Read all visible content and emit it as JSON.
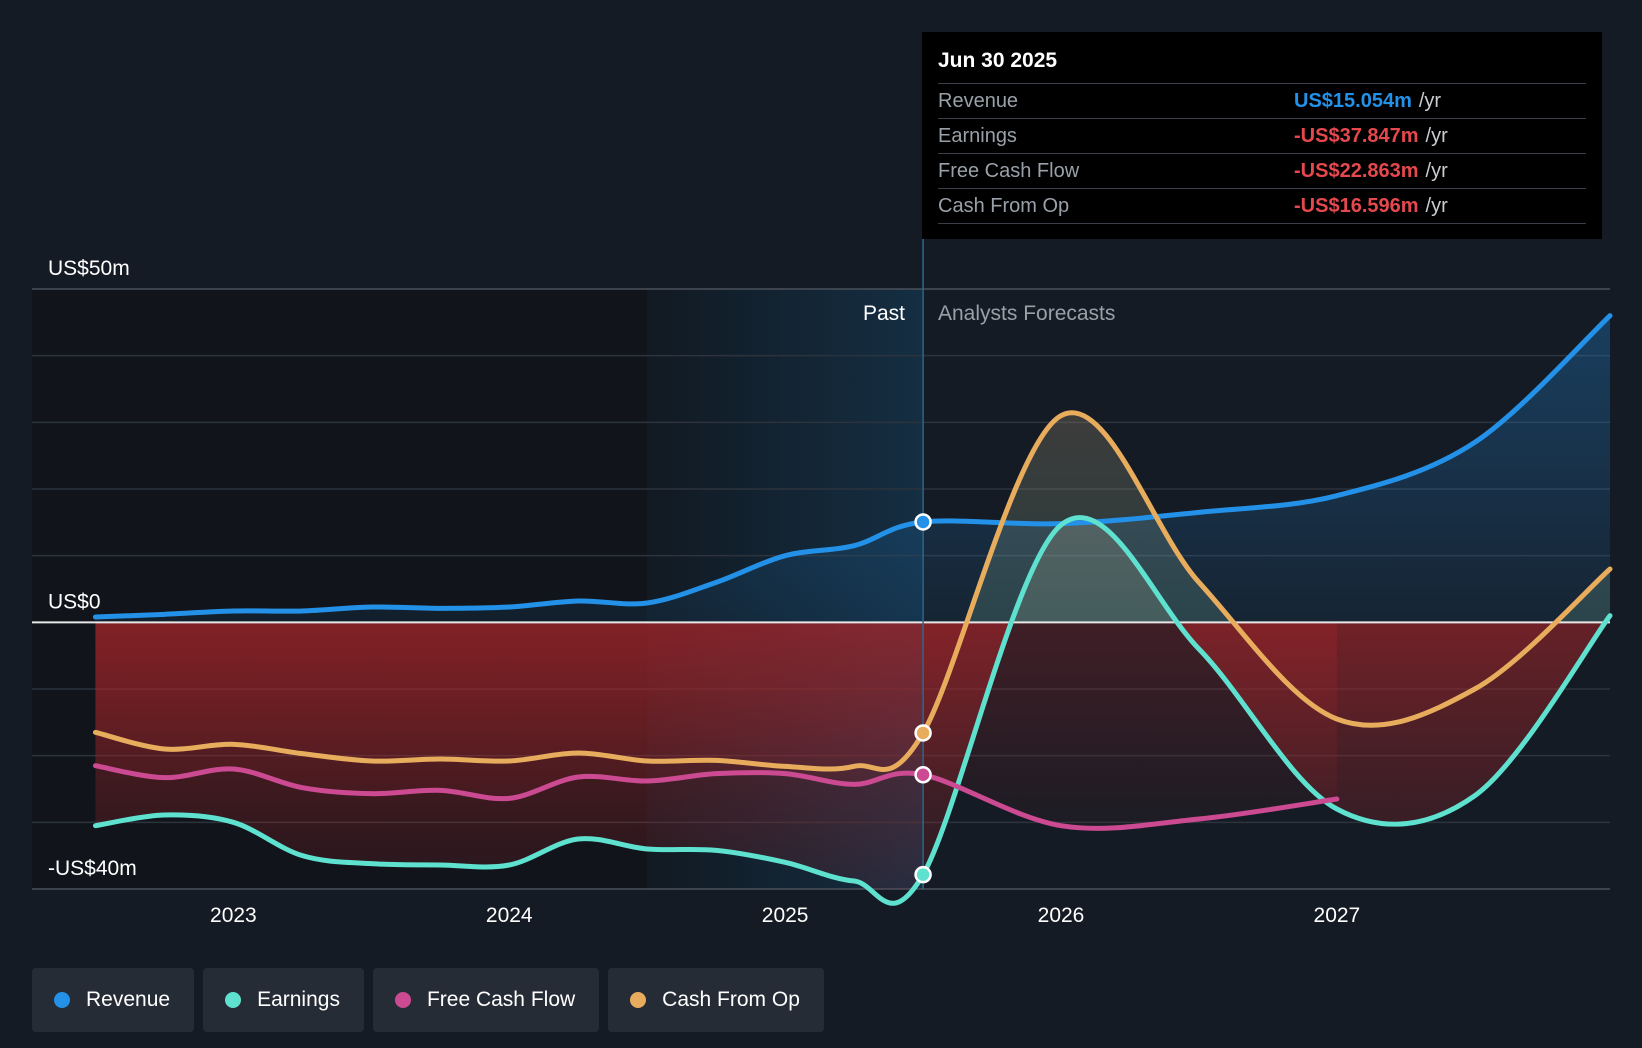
{
  "chart_data": {
    "type": "line",
    "title": "",
    "x_ticks": [
      "2023",
      "2024",
      "2025",
      "2026",
      "2027"
    ],
    "y_ticks": [
      {
        "value": 50,
        "label": "US$50m"
      },
      {
        "value": 0,
        "label": "US$0"
      },
      {
        "value": -40,
        "label": "-US$40m"
      }
    ],
    "ylim": [
      -40,
      50
    ],
    "xlim": [
      2022.27,
      2027.99
    ],
    "divider_x": 2025.5,
    "past_label": "Past",
    "forecast_label": "Analysts Forecasts",
    "series": [
      {
        "name": "Revenue",
        "color": "#2391e8",
        "x": [
          2022.5,
          2022.75,
          2023.0,
          2023.25,
          2023.5,
          2023.75,
          2024.0,
          2024.25,
          2024.5,
          2024.75,
          2025.0,
          2025.25,
          2025.5,
          2026.0,
          2026.5,
          2027.0,
          2027.5,
          2027.99
        ],
        "y": [
          0.8,
          1.2,
          1.7,
          1.7,
          2.3,
          2.1,
          2.3,
          3.2,
          2.9,
          6.0,
          10.0,
          11.5,
          15.054,
          14.8,
          16.5,
          19.0,
          27.0,
          46.0
        ]
      },
      {
        "name": "Earnings",
        "color": "#5ee1cf",
        "x": [
          2022.5,
          2022.75,
          2023.0,
          2023.25,
          2023.5,
          2023.75,
          2024.0,
          2024.25,
          2024.5,
          2024.75,
          2025.0,
          2025.25,
          2025.5,
          2026.0,
          2026.5,
          2027.0,
          2027.5,
          2027.99
        ],
        "y": [
          -30.5,
          -28.9,
          -30.0,
          -35.0,
          -36.2,
          -36.4,
          -36.4,
          -32.5,
          -34.0,
          -34.2,
          -36.0,
          -38.8,
          -37.847,
          14.6,
          -4.0,
          -28.0,
          -26.0,
          1.0
        ]
      },
      {
        "name": "Free Cash Flow",
        "color": "#cc4a92",
        "x": [
          2022.5,
          2022.75,
          2023.0,
          2023.25,
          2023.5,
          2023.75,
          2024.0,
          2024.25,
          2024.5,
          2024.75,
          2025.0,
          2025.25,
          2025.5,
          2026.0,
          2026.5,
          2027.0
        ],
        "y": [
          -21.5,
          -23.3,
          -22.0,
          -24.8,
          -25.7,
          -25.2,
          -26.4,
          -23.2,
          -23.8,
          -22.7,
          -22.7,
          -24.3,
          -22.863,
          -30.5,
          -29.5,
          -26.5
        ]
      },
      {
        "name": "Cash From Op",
        "color": "#e8ac5d",
        "x": [
          2022.5,
          2022.75,
          2023.0,
          2023.25,
          2023.5,
          2023.75,
          2024.0,
          2024.25,
          2024.5,
          2024.75,
          2025.0,
          2025.25,
          2025.5,
          2026.0,
          2026.5,
          2027.0,
          2027.5,
          2027.99
        ],
        "y": [
          -16.5,
          -19.0,
          -18.3,
          -19.7,
          -20.8,
          -20.5,
          -20.8,
          -19.6,
          -20.8,
          -20.7,
          -21.6,
          -21.6,
          -16.596,
          31.0,
          6.0,
          -14.5,
          -10.0,
          8.0
        ]
      }
    ],
    "tooltip": {
      "date": "Jun 30 2025",
      "rows": [
        {
          "label": "Revenue",
          "value": "US$15.054m",
          "unit": "/yr",
          "color": "#2391e8"
        },
        {
          "label": "Earnings",
          "value": "-US$37.847m",
          "unit": "/yr",
          "color": "#e5484d"
        },
        {
          "label": "Free Cash Flow",
          "value": "-US$22.863m",
          "unit": "/yr",
          "color": "#e5484d"
        },
        {
          "label": "Cash From Op",
          "value": "-US$16.596m",
          "unit": "/yr",
          "color": "#e5484d"
        }
      ]
    }
  },
  "legend": [
    {
      "label": "Revenue",
      "color": "#2391e8"
    },
    {
      "label": "Earnings",
      "color": "#5ee1cf"
    },
    {
      "label": "Free Cash Flow",
      "color": "#cc4a92"
    },
    {
      "label": "Cash From Op",
      "color": "#e8ac5d"
    }
  ]
}
